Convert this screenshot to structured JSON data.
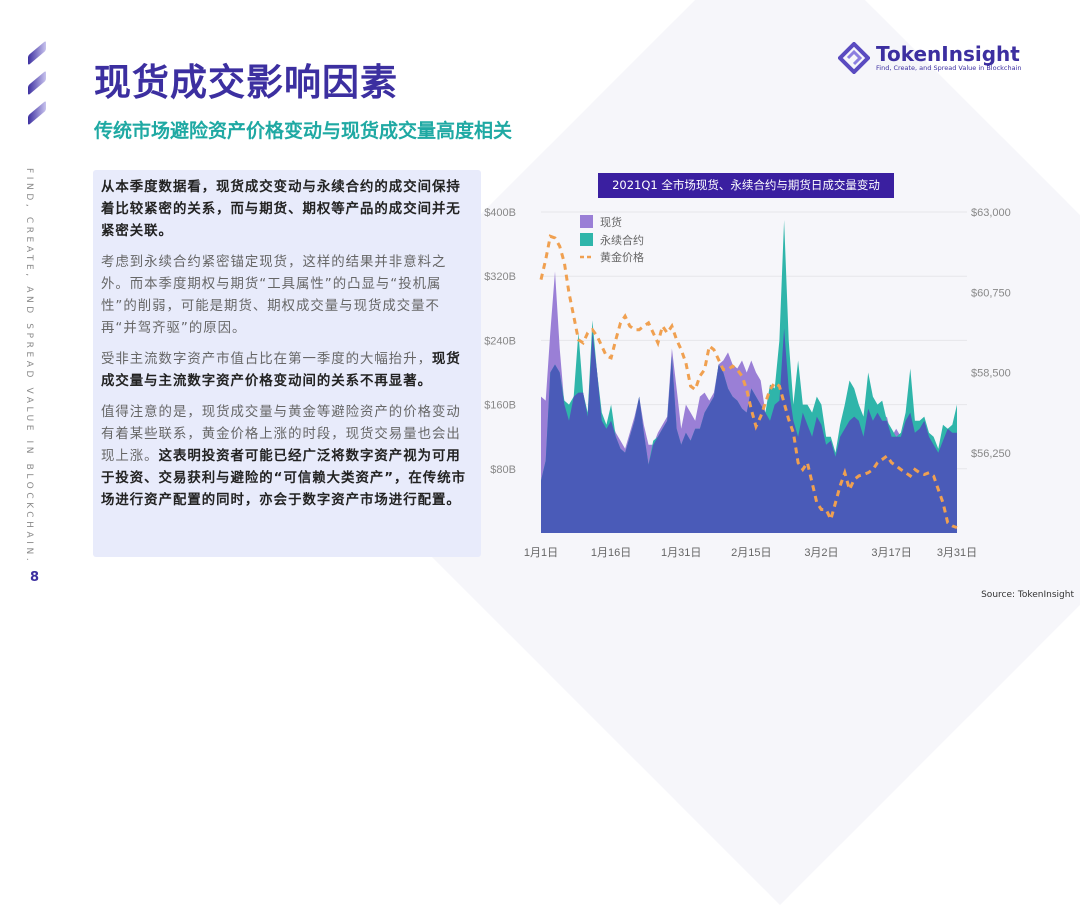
{
  "page": {
    "number": "8",
    "side_text": "FIND, CREATE, AND SPREAD VALUE IN BLOCKCHAIN.",
    "title": "现货成交影响因素",
    "subtitle": "传统市场避险资产价格变动与现货成交量高度相关",
    "source": "Source: TokenInsight"
  },
  "logo": {
    "name": "TokenInsight",
    "tagline": "Find, Create, and Spread Value in Blockchain"
  },
  "text": {
    "p1": "从本季度数据看，现货成交变动与永续合约的成交间保持着比较紧密的关系，而与期货、期权等产品的成交间并无紧密关联。",
    "p2": "考虑到永续合约紧密锚定现货，这样的结果并非意料之外。而本季度期权与期货“工具属性”的凸显与“投机属性”的削弱，可能是期货、期权成交量与现货成交量不再“并驾齐驱”的原因。",
    "p3a": "受非主流数字资产市值占比在第一季度的大幅抬升，",
    "p3b": "现货成交量与主流数字资产价格变动间的关系不再显著。",
    "p4a": "值得注意的是，现货成交量与黄金等避险资产的价格变动有着某些联系，黄金价格上涨的时段，现货交易量也会出现上涨。",
    "p4b": "这表明投资者可能已经广泛将数字资产视为可用于投资、交易获利与避险的“可信赖大类资产”，在传统市场进行资产配置的同时，亦会于数字资产市场进行配置。"
  },
  "chart_data": {
    "type": "area",
    "title": "2021Q1 全市场现货、永续合约与期货日成交量变动",
    "x_ticks": [
      "1月1日",
      "1月16日",
      "1月31日",
      "2月15日",
      "3月2日",
      "3月17日",
      "3月31日"
    ],
    "y_left": {
      "ticks": [
        "$80B",
        "$160B",
        "$240B",
        "$320B",
        "$400B"
      ],
      "range": [
        0,
        400
      ]
    },
    "y_right": {
      "ticks": [
        "$56,250",
        "$58,500",
        "$60,750",
        "$63,000"
      ],
      "range": [
        54000,
        63000
      ]
    },
    "legend_position": "top-left",
    "colors": {
      "spot": "#9a7fd6",
      "perp": "#2fb5aa",
      "overlap": "#4a5bb8",
      "gold": "#f0a050"
    },
    "series": [
      {
        "name": "现货",
        "unit": "B USD",
        "values": [
          170,
          165,
          250,
          326,
          230,
          160,
          140,
          170,
          175,
          175,
          145,
          250,
          200,
          140,
          130,
          140,
          125,
          115,
          105,
          125,
          145,
          170,
          135,
          110,
          110,
          125,
          135,
          145,
          230,
          180,
          130,
          160,
          150,
          140,
          170,
          175,
          165,
          175,
          210,
          215,
          225,
          210,
          205,
          215,
          200,
          215,
          200,
          190,
          150,
          140,
          160,
          165,
          255,
          180,
          140,
          120,
          150,
          135,
          120,
          145,
          135,
          110,
          115,
          95,
          120,
          130,
          140,
          145,
          140,
          120,
          155,
          140,
          150,
          140,
          145,
          120,
          130,
          120,
          140,
          150,
          125,
          130,
          140,
          120,
          110,
          100,
          115,
          130,
          125,
          125
        ]
      },
      {
        "name": "永续合约",
        "unit": "B USD",
        "values": [
          65,
          90,
          200,
          210,
          200,
          165,
          160,
          170,
          250,
          175,
          150,
          265,
          200,
          150,
          135,
          160,
          120,
          105,
          100,
          120,
          140,
          170,
          125,
          85,
          115,
          120,
          130,
          140,
          220,
          130,
          110,
          125,
          115,
          130,
          130,
          150,
          160,
          170,
          210,
          200,
          180,
          170,
          165,
          155,
          150,
          180,
          170,
          160,
          150,
          185,
          180,
          240,
          390,
          240,
          160,
          215,
          160,
          160,
          150,
          170,
          160,
          120,
          120,
          100,
          135,
          160,
          190,
          180,
          160,
          145,
          200,
          170,
          160,
          165,
          140,
          130,
          120,
          125,
          150,
          205,
          140,
          140,
          145,
          125,
          120,
          105,
          135,
          130,
          135,
          160
        ]
      },
      {
        "name": "黄金价格",
        "unit": "USD",
        "values": [
          61105,
          61665,
          62320,
          62270,
          62040,
          61570,
          60730,
          60080,
          59420,
          59330,
          59610,
          59700,
          59520,
          59240,
          58960,
          58910,
          59420,
          59890,
          60080,
          59800,
          59700,
          59700,
          59800,
          59890,
          59610,
          59330,
          59800,
          59610,
          59800,
          59420,
          59140,
          58770,
          58120,
          58020,
          58400,
          58580,
          59240,
          59140,
          58860,
          58580,
          58580,
          58680,
          58580,
          58400,
          58020,
          57460,
          56990,
          57270,
          57650,
          58020,
          58210,
          58120,
          57650,
          57180,
          56810,
          55970,
          55780,
          55970,
          55410,
          54850,
          54660,
          54660,
          54380,
          54850,
          55320,
          55690,
          55220,
          55500,
          55600,
          55640,
          55690,
          55780,
          55970,
          56060,
          56160,
          55970,
          55880,
          55780,
          55690,
          55600,
          55780,
          55690,
          55640,
          55690,
          55600,
          55220,
          54850,
          54290,
          54200,
          54150
        ]
      }
    ]
  }
}
